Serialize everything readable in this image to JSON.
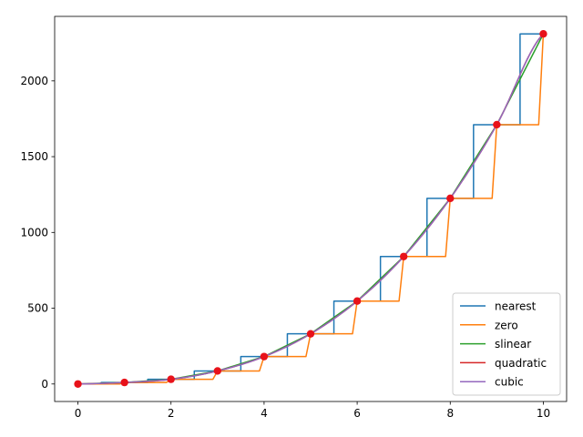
{
  "chart_data": {
    "type": "line",
    "title": "",
    "xlabel": "",
    "ylabel": "",
    "xlim": [
      -0.5,
      10.5
    ],
    "ylim": [
      -115.5,
      2425.5
    ],
    "grid": false,
    "legend_placement": "bottom-right",
    "x_ticks": [
      0,
      2,
      4,
      6,
      8,
      10
    ],
    "x_tick_labels": [
      "0",
      "2",
      "4",
      "6",
      "8",
      "10"
    ],
    "y_ticks": [
      0,
      500,
      1000,
      1500,
      2000
    ],
    "y_tick_labels": [
      "0",
      "500",
      "1000",
      "1500",
      "2000"
    ],
    "points": {
      "x": [
        0,
        1,
        2,
        3,
        4,
        5,
        6,
        7,
        8,
        9,
        10
      ],
      "y": [
        0,
        10,
        31,
        86,
        181,
        331,
        547,
        841,
        1225,
        1711,
        2310
      ],
      "color": "#e8121a"
    },
    "series": [
      {
        "name": "nearest",
        "method": "nearest",
        "color": "#1f77b4"
      },
      {
        "name": "zero",
        "method": "zero",
        "color": "#ff7f0e"
      },
      {
        "name": "slinear",
        "method": "linear",
        "color": "#2ca02c"
      },
      {
        "name": "quadratic",
        "method": "smooth",
        "color": "#d62728"
      },
      {
        "name": "cubic",
        "method": "smooth",
        "color": "#9467bd"
      }
    ]
  }
}
